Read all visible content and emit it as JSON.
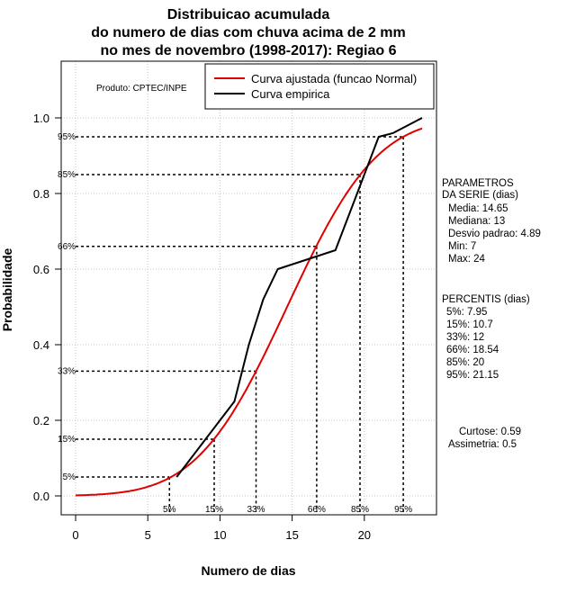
{
  "chart_data": {
    "type": "line",
    "title_lines": [
      "Distribuicao acumulada",
      "do numero de dias com chuva acima de 2 mm",
      "no mes de novembro (1998-2017): Regiao 6"
    ],
    "xlabel": "Numero de dias",
    "ylabel": "Probabilidade",
    "xlim": [
      -1,
      25
    ],
    "ylim": [
      -0.05,
      1.15
    ],
    "x_ticks": [
      0,
      5,
      10,
      15,
      20
    ],
    "y_ticks": [
      0.0,
      0.2,
      0.4,
      0.6,
      0.8,
      1.0
    ],
    "x_tick_labels": [
      "0",
      "5",
      "10",
      "15",
      "20"
    ],
    "y_tick_labels": [
      "0.0",
      "0.2",
      "0.4",
      "0.6",
      "0.8",
      "1.0"
    ],
    "grid": true,
    "credit": "Produto: CPTEC/INPE",
    "legend": {
      "position": "top-right",
      "entries": [
        {
          "label": "Curva ajustada (funcao Normal)",
          "color": "#e00000"
        },
        {
          "label": "Curva empirica",
          "color": "#000000"
        }
      ]
    },
    "series": [
      {
        "name": "Curva ajustada (funcao Normal)",
        "color": "#e00000",
        "distribution": {
          "mean": 14.65,
          "sd": 4.89
        },
        "x_range": [
          0,
          24
        ]
      },
      {
        "name": "Curva empirica",
        "color": "#000000",
        "x": [
          7,
          11,
          12,
          13,
          14,
          18,
          19,
          20,
          21,
          22,
          24
        ],
        "y": [
          0.05,
          0.25,
          0.4,
          0.52,
          0.6,
          0.65,
          0.75,
          0.85,
          0.95,
          0.96,
          1.0
        ]
      }
    ],
    "percentile_markers": [
      {
        "label": "5%",
        "x": 6.5,
        "y": 0.05
      },
      {
        "label": "15%",
        "x": 9.6,
        "y": 0.15
      },
      {
        "label": "33%",
        "x": 12.5,
        "y": 0.33
      },
      {
        "label": "66%",
        "x": 16.7,
        "y": 0.66
      },
      {
        "label": "85%",
        "x": 19.7,
        "y": 0.85
      },
      {
        "label": "95%",
        "x": 22.7,
        "y": 0.95
      }
    ],
    "side_text": {
      "param_title_lines": [
        "PARAMETROS",
        "DA SERIE (dias)"
      ],
      "params": [
        "Media: 14.65",
        "Mediana: 13",
        "Desvio padrao: 4.89",
        "Min: 7",
        "Max: 24"
      ],
      "percentis_title": "PERCENTIS (dias)",
      "percentis": [
        "5%: 7.95",
        "15%: 10.7",
        "33%: 12",
        "66%: 18.54",
        "85%: 20",
        "95%: 21.15"
      ],
      "shape": [
        "Curtose: 0.59",
        "Assimetria: 0.5"
      ]
    }
  }
}
